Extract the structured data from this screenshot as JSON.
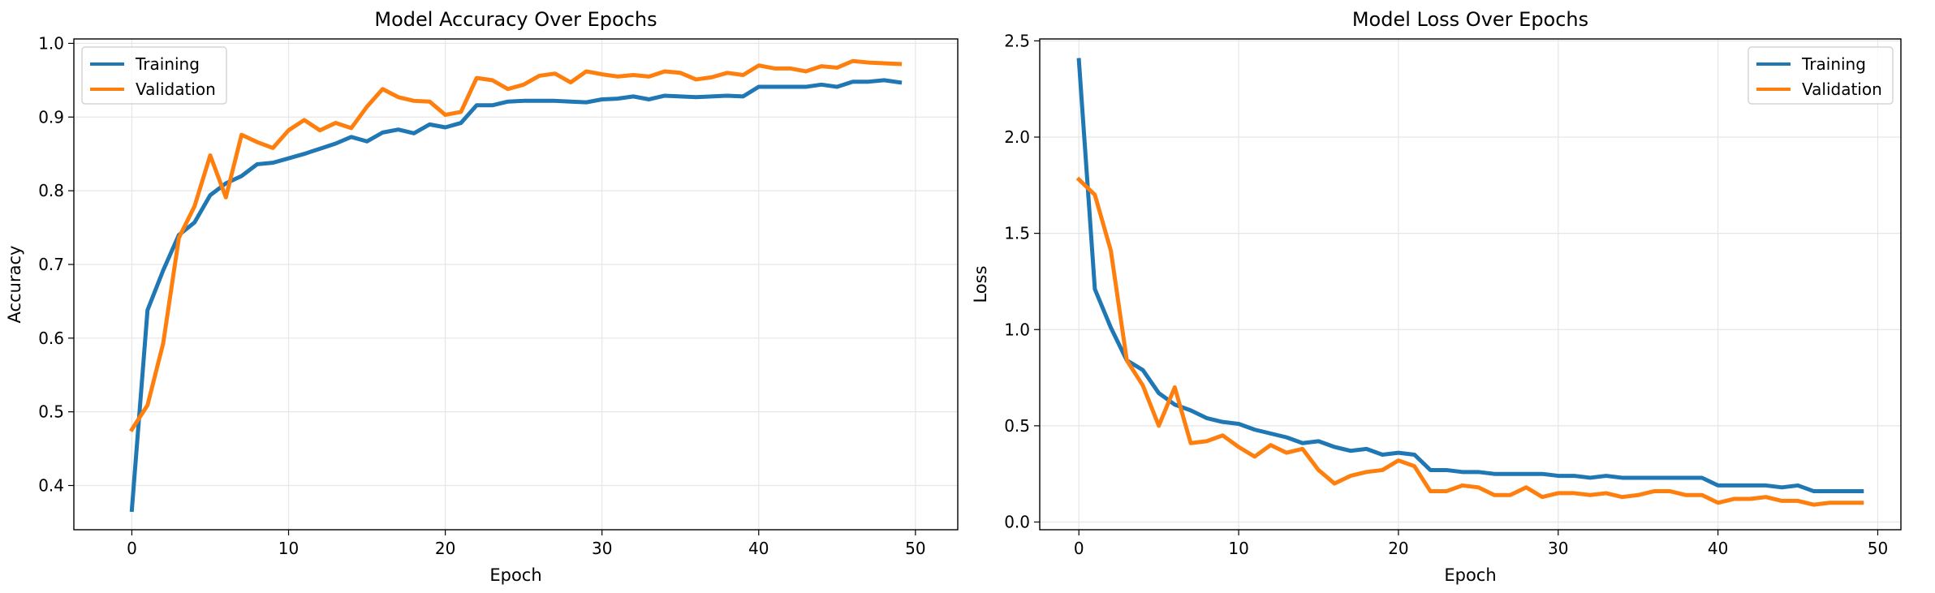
{
  "chart_data": [
    {
      "type": "line",
      "title": "Model Accuracy Over Epochs",
      "xlabel": "Epoch",
      "ylabel": "Accuracy",
      "xlim": [
        -3.7,
        52.7
      ],
      "ylim": [
        0.34,
        1.006
      ],
      "xticks": [
        0,
        10,
        20,
        30,
        40,
        50
      ],
      "yticks": [
        0.4,
        0.5,
        0.6,
        0.7,
        0.8,
        0.9,
        1.0
      ],
      "ytick_labels": [
        "0.4",
        "0.5",
        "0.6",
        "0.7",
        "0.8",
        "0.9",
        "1.0"
      ],
      "grid": true,
      "legend_position": "top-left",
      "x": [
        0,
        1,
        2,
        3,
        4,
        5,
        6,
        7,
        8,
        9,
        10,
        11,
        12,
        13,
        14,
        15,
        16,
        17,
        18,
        19,
        20,
        21,
        22,
        23,
        24,
        25,
        26,
        27,
        28,
        29,
        30,
        31,
        32,
        33,
        34,
        35,
        36,
        37,
        38,
        39,
        40,
        41,
        42,
        43,
        44,
        45,
        46,
        47,
        48,
        49
      ],
      "series": [
        {
          "name": "Training",
          "color": "#1f77b4",
          "values": [
            0.367,
            0.638,
            0.692,
            0.74,
            0.757,
            0.794,
            0.81,
            0.82,
            0.836,
            0.838,
            0.844,
            0.85,
            0.857,
            0.864,
            0.873,
            0.867,
            0.879,
            0.883,
            0.878,
            0.89,
            0.886,
            0.892,
            0.916,
            0.916,
            0.921,
            0.922,
            0.922,
            0.922,
            0.921,
            0.92,
            0.924,
            0.925,
            0.928,
            0.924,
            0.929,
            0.928,
            0.927,
            0.928,
            0.929,
            0.928,
            0.941,
            0.941,
            0.941,
            0.941,
            0.944,
            0.941,
            0.948,
            0.948,
            0.95,
            0.947
          ]
        },
        {
          "name": "Validation",
          "color": "#ff7f0e",
          "values": [
            0.476,
            0.509,
            0.593,
            0.736,
            0.779,
            0.848,
            0.791,
            0.876,
            0.866,
            0.858,
            0.882,
            0.896,
            0.882,
            0.892,
            0.885,
            0.914,
            0.938,
            0.927,
            0.922,
            0.921,
            0.903,
            0.907,
            0.953,
            0.95,
            0.938,
            0.944,
            0.956,
            0.959,
            0.947,
            0.962,
            0.958,
            0.955,
            0.957,
            0.955,
            0.962,
            0.96,
            0.951,
            0.954,
            0.96,
            0.957,
            0.97,
            0.966,
            0.966,
            0.962,
            0.969,
            0.967,
            0.976,
            0.974,
            0.973,
            0.972
          ]
        }
      ]
    },
    {
      "type": "line",
      "title": "Model Loss Over Epochs",
      "xlabel": "Epoch",
      "ylabel": "Loss",
      "xlim": [
        -2.45,
        51.45
      ],
      "ylim": [
        -0.04,
        2.51
      ],
      "xticks": [
        0,
        10,
        20,
        30,
        40,
        50
      ],
      "yticks": [
        0.0,
        0.5,
        1.0,
        1.5,
        2.0,
        2.5
      ],
      "ytick_labels": [
        "0.0",
        "0.5",
        "1.0",
        "1.5",
        "2.0",
        "2.5"
      ],
      "grid": true,
      "legend_position": "top-right",
      "x": [
        0,
        1,
        2,
        3,
        4,
        5,
        6,
        7,
        8,
        9,
        10,
        11,
        12,
        13,
        14,
        15,
        16,
        17,
        18,
        19,
        20,
        21,
        22,
        23,
        24,
        25,
        26,
        27,
        28,
        29,
        30,
        31,
        32,
        33,
        34,
        35,
        36,
        37,
        38,
        39,
        40,
        41,
        42,
        43,
        44,
        45,
        46,
        47,
        48,
        49
      ],
      "series": [
        {
          "name": "Training",
          "color": "#1f77b4",
          "values": [
            2.4,
            1.21,
            1.01,
            0.84,
            0.79,
            0.67,
            0.61,
            0.58,
            0.54,
            0.52,
            0.51,
            0.48,
            0.46,
            0.44,
            0.41,
            0.42,
            0.39,
            0.37,
            0.38,
            0.35,
            0.36,
            0.35,
            0.27,
            0.27,
            0.26,
            0.26,
            0.25,
            0.25,
            0.25,
            0.25,
            0.24,
            0.24,
            0.23,
            0.24,
            0.23,
            0.23,
            0.23,
            0.23,
            0.23,
            0.23,
            0.19,
            0.19,
            0.19,
            0.19,
            0.18,
            0.19,
            0.16,
            0.16,
            0.16,
            0.16
          ]
        },
        {
          "name": "Validation",
          "color": "#ff7f0e",
          "values": [
            1.78,
            1.7,
            1.41,
            0.84,
            0.71,
            0.5,
            0.7,
            0.41,
            0.42,
            0.45,
            0.39,
            0.34,
            0.4,
            0.36,
            0.38,
            0.27,
            0.2,
            0.24,
            0.26,
            0.27,
            0.32,
            0.29,
            0.16,
            0.16,
            0.19,
            0.18,
            0.14,
            0.14,
            0.18,
            0.13,
            0.15,
            0.15,
            0.14,
            0.15,
            0.13,
            0.14,
            0.16,
            0.16,
            0.14,
            0.14,
            0.1,
            0.12,
            0.12,
            0.13,
            0.11,
            0.11,
            0.09,
            0.1,
            0.1,
            0.1
          ]
        }
      ]
    }
  ]
}
